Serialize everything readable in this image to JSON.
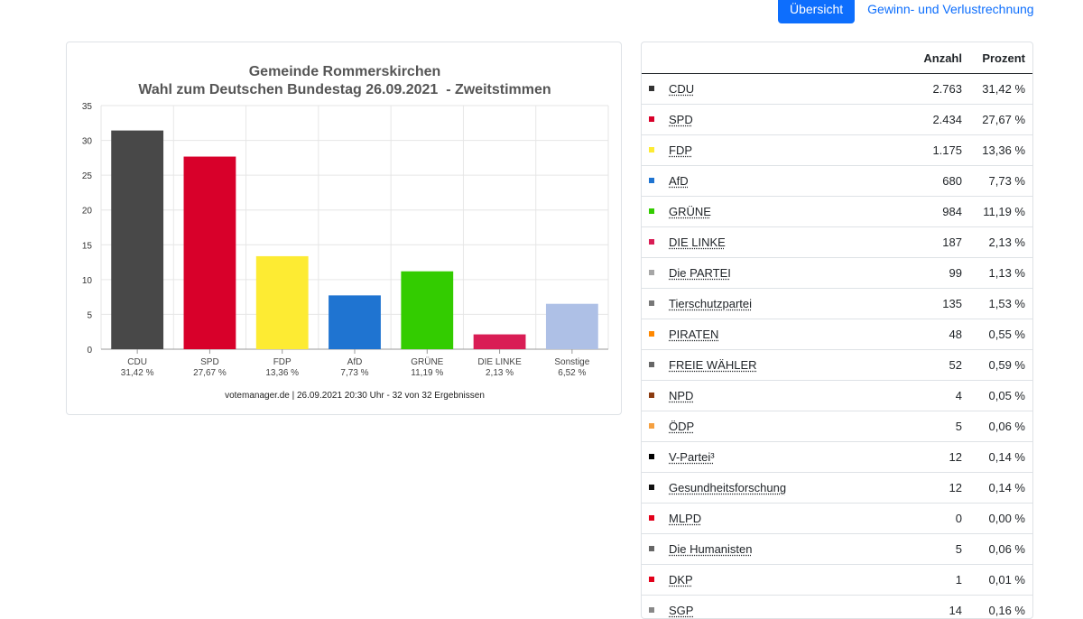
{
  "nav": {
    "tab_overview": "Übersicht",
    "tab_gain_loss": "Gewinn- und Verlustrechnung"
  },
  "chart_data": {
    "type": "bar",
    "title": "Gemeinde Rommerskirchen",
    "subtitle": "Wahl zum Deutschen Bundestag 26.09.2021  - Zweitstimmen",
    "categories": [
      "CDU",
      "SPD",
      "FDP",
      "AfD",
      "GRÜNE",
      "DIE LINKE",
      "Sonstige"
    ],
    "category_labels": [
      "31,42 %",
      "27,67 %",
      "13,36 %",
      "7,73 %",
      "11,19 %",
      "2,13 %",
      "6,52 %"
    ],
    "values": [
      31.42,
      27.67,
      13.36,
      7.73,
      11.19,
      2.13,
      6.52
    ],
    "colors": [
      "#484848",
      "#d8002a",
      "#fdeb33",
      "#1f74d1",
      "#33cc00",
      "#d91d55",
      "#aec0e6"
    ],
    "ylim": [
      0,
      35
    ],
    "yticks": [
      "0",
      "5",
      "10",
      "15",
      "20",
      "25",
      "30",
      "35"
    ],
    "grid": true,
    "xlabel": "",
    "ylabel": "",
    "footer": "votemanager.de | 26.09.2021 20:30 Uhr - 32 von 32 Ergebnissen"
  },
  "results_table": {
    "col_count": "Anzahl",
    "col_percent": "Prozent",
    "rows": [
      {
        "party": "CDU",
        "count": "2.763",
        "percent": "31,42 %",
        "color": "#333333"
      },
      {
        "party": "SPD",
        "count": "2.434",
        "percent": "27,67 %",
        "color": "#d8002a"
      },
      {
        "party": "FDP",
        "count": "1.175",
        "percent": "13,36 %",
        "color": "#fdeb33"
      },
      {
        "party": "AfD",
        "count": "680",
        "percent": "7,73 %",
        "color": "#1f74d1"
      },
      {
        "party": "GRÜNE",
        "count": "984",
        "percent": "11,19 %",
        "color": "#33cc00"
      },
      {
        "party": "DIE LINKE",
        "count": "187",
        "percent": "2,13 %",
        "color": "#d91d55"
      },
      {
        "party": "Die PARTEI",
        "count": "99",
        "percent": "1,13 %",
        "color": "#a6a6a6"
      },
      {
        "party": "Tierschutzpartei",
        "count": "135",
        "percent": "1,53 %",
        "color": "#777777"
      },
      {
        "party": "PIRATEN",
        "count": "48",
        "percent": "0,55 %",
        "color": "#ff8800"
      },
      {
        "party": "FREIE WÄHLER",
        "count": "52",
        "percent": "0,59 %",
        "color": "#666666"
      },
      {
        "party": "NPD",
        "count": "4",
        "percent": "0,05 %",
        "color": "#8b3b10"
      },
      {
        "party": "ÖDP",
        "count": "5",
        "percent": "0,06 %",
        "color": "#f5a040"
      },
      {
        "party": "V-Partei³",
        "count": "12",
        "percent": "0,14 %",
        "color": "#000000"
      },
      {
        "party": "Gesundheitsforschung",
        "count": "12",
        "percent": "0,14 %",
        "color": "#111111"
      },
      {
        "party": "MLPD",
        "count": "0",
        "percent": "0,00 %",
        "color": "#e2001a"
      },
      {
        "party": "Die Humanisten",
        "count": "5",
        "percent": "0,06 %",
        "color": "#666666"
      },
      {
        "party": "DKP",
        "count": "1",
        "percent": "0,01 %",
        "color": "#e2001a"
      },
      {
        "party": "SGP",
        "count": "14",
        "percent": "0,16 %",
        "color": "#888888"
      }
    ]
  }
}
